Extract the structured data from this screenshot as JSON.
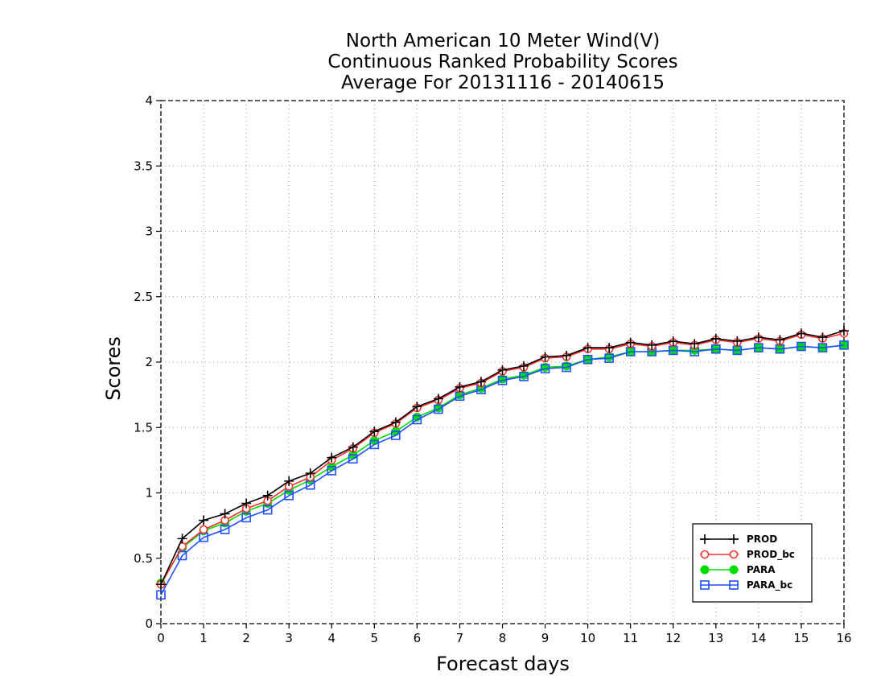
{
  "chart_data": {
    "type": "line",
    "title_lines": [
      "North American 10 Meter Wind(V)",
      "Continuous Ranked Probability Scores",
      "Average For 20131116 - 20140615"
    ],
    "xlabel": "Forecast days",
    "ylabel": "Scores",
    "xlim": [
      0,
      16
    ],
    "ylim": [
      0,
      4
    ],
    "xticks": [
      0,
      1,
      2,
      3,
      4,
      5,
      6,
      7,
      8,
      9,
      10,
      11,
      12,
      13,
      14,
      15,
      16
    ],
    "yticks": [
      0,
      0.5,
      1,
      1.5,
      2,
      2.5,
      3,
      3.5,
      4
    ],
    "grid": true,
    "legend_position": "bottom-right",
    "x": [
      0,
      0.5,
      1,
      1.5,
      2,
      2.5,
      3,
      3.5,
      4,
      4.5,
      5,
      5.5,
      6,
      6.5,
      7,
      7.5,
      8,
      8.5,
      9,
      9.5,
      10,
      10.5,
      11,
      11.5,
      12,
      12.5,
      13,
      13.5,
      14,
      14.5,
      15,
      15.5,
      16
    ],
    "series": [
      {
        "name": "PROD",
        "color": "#000000",
        "marker": "plus",
        "values": [
          0.3,
          0.65,
          0.79,
          0.84,
          0.92,
          0.98,
          1.09,
          1.15,
          1.27,
          1.35,
          1.47,
          1.54,
          1.66,
          1.72,
          1.81,
          1.85,
          1.94,
          1.97,
          2.04,
          2.05,
          2.11,
          2.11,
          2.15,
          2.13,
          2.16,
          2.14,
          2.18,
          2.16,
          2.19,
          2.17,
          2.22,
          2.19,
          2.24
        ]
      },
      {
        "name": "PROD_bc",
        "color": "#ff3030",
        "marker": "circle-open",
        "values": [
          0.3,
          0.59,
          0.72,
          0.79,
          0.88,
          0.94,
          1.05,
          1.12,
          1.25,
          1.34,
          1.46,
          1.53,
          1.65,
          1.71,
          1.8,
          1.84,
          1.93,
          1.96,
          2.03,
          2.04,
          2.1,
          2.1,
          2.14,
          2.12,
          2.15,
          2.13,
          2.17,
          2.15,
          2.18,
          2.16,
          2.21,
          2.18,
          2.22
        ]
      },
      {
        "name": "PARA",
        "color": "#00dd00",
        "marker": "circle-filled",
        "values": [
          0.31,
          0.58,
          0.71,
          0.77,
          0.86,
          0.92,
          1.02,
          1.1,
          1.2,
          1.29,
          1.4,
          1.47,
          1.58,
          1.65,
          1.75,
          1.8,
          1.87,
          1.9,
          1.96,
          1.97,
          2.02,
          2.04,
          2.08,
          2.08,
          2.09,
          2.09,
          2.1,
          2.09,
          2.11,
          2.1,
          2.12,
          2.11,
          2.13
        ]
      },
      {
        "name": "PARA_bc",
        "color": "#2050ff",
        "marker": "square-open",
        "values": [
          0.22,
          0.52,
          0.66,
          0.72,
          0.81,
          0.87,
          0.98,
          1.06,
          1.17,
          1.26,
          1.37,
          1.44,
          1.56,
          1.64,
          1.74,
          1.79,
          1.86,
          1.89,
          1.95,
          1.96,
          2.02,
          2.03,
          2.08,
          2.08,
          2.09,
          2.08,
          2.1,
          2.09,
          2.11,
          2.1,
          2.12,
          2.11,
          2.13
        ]
      }
    ]
  }
}
